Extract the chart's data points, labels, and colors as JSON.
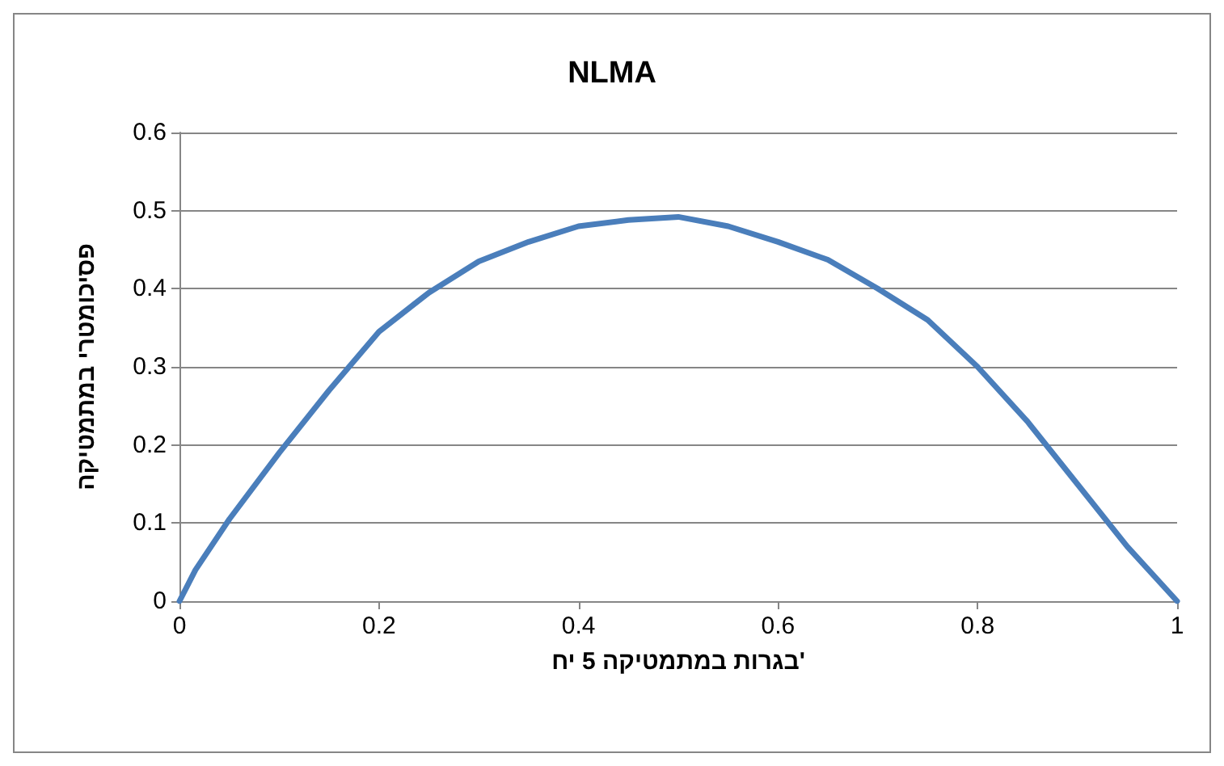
{
  "chart_data": {
    "type": "line",
    "title": "NLMA",
    "xlabel": "בגרות במתמטיקה 5 יח'",
    "ylabel": "פסיכומטרי במתמטיקה",
    "x": [
      0,
      0.016,
      0.05,
      0.1,
      0.15,
      0.2,
      0.25,
      0.3,
      0.35,
      0.4,
      0.45,
      0.5,
      0.55,
      0.6,
      0.65,
      0.7,
      0.75,
      0.8,
      0.85,
      0.9,
      0.95,
      1
    ],
    "series": [
      {
        "color": "#4a7ebb",
        "values": [
          0,
          0.04,
          0.105,
          0.19,
          0.27,
          0.345,
          0.395,
          0.435,
          0.46,
          0.48,
          0.488,
          0.492,
          0.48,
          0.46,
          0.437,
          0.4,
          0.36,
          0.3,
          0.23,
          0.15,
          0.07,
          0
        ]
      }
    ],
    "xlim": [
      0,
      1
    ],
    "xticks": [
      0,
      0.2,
      0.4,
      0.6,
      0.8,
      1
    ],
    "ylim": [
      0,
      0.6
    ],
    "yticks": [
      0,
      0.1,
      0.2,
      0.3,
      0.4,
      0.5,
      0.6
    ],
    "grid": "y",
    "marker": "none",
    "line_style": "solid"
  }
}
